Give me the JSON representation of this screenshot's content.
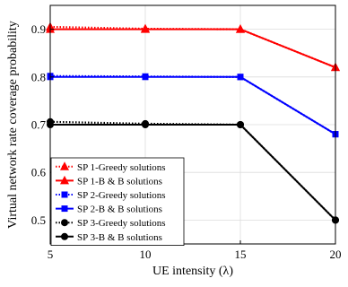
{
  "chart_data": {
    "type": "line",
    "xlabel": "UE intensity (λ)",
    "ylabel": "Virtual network rate coverage probability",
    "x": [
      5,
      10,
      15,
      20
    ],
    "xticks": [
      5,
      10,
      15,
      20
    ],
    "yticks": [
      0.5,
      0.6,
      0.7,
      0.8,
      0.9
    ],
    "xlim": [
      5,
      20
    ],
    "ylim": [
      0.45,
      0.95
    ],
    "grid": true,
    "legend_position": "bottom-left",
    "series": [
      {
        "name": "SP 1-Greedy solutions",
        "values": [
          0.905,
          0.901,
          0.9,
          0.82
        ],
        "color": "#ff0000",
        "marker": "triangle",
        "dash": "dotted"
      },
      {
        "name": "SP 1-B & B solutions",
        "values": [
          0.9,
          0.9,
          0.9,
          0.82
        ],
        "color": "#ff0000",
        "marker": "triangle",
        "dash": "solid"
      },
      {
        "name": "SP 2-Greedy solutions",
        "values": [
          0.802,
          0.801,
          0.8,
          0.68
        ],
        "color": "#0000ff",
        "marker": "square",
        "dash": "dotted"
      },
      {
        "name": "SP 2-B & B solutions",
        "values": [
          0.8,
          0.8,
          0.8,
          0.68
        ],
        "color": "#0000ff",
        "marker": "square",
        "dash": "solid"
      },
      {
        "name": "SP 3-Greedy solutions",
        "values": [
          0.706,
          0.702,
          0.7,
          0.5
        ],
        "color": "#000000",
        "marker": "circle",
        "dash": "dotted"
      },
      {
        "name": "SP 3-B & B solutions",
        "values": [
          0.7,
          0.7,
          0.7,
          0.5
        ],
        "color": "#000000",
        "marker": "circle",
        "dash": "solid"
      }
    ]
  }
}
